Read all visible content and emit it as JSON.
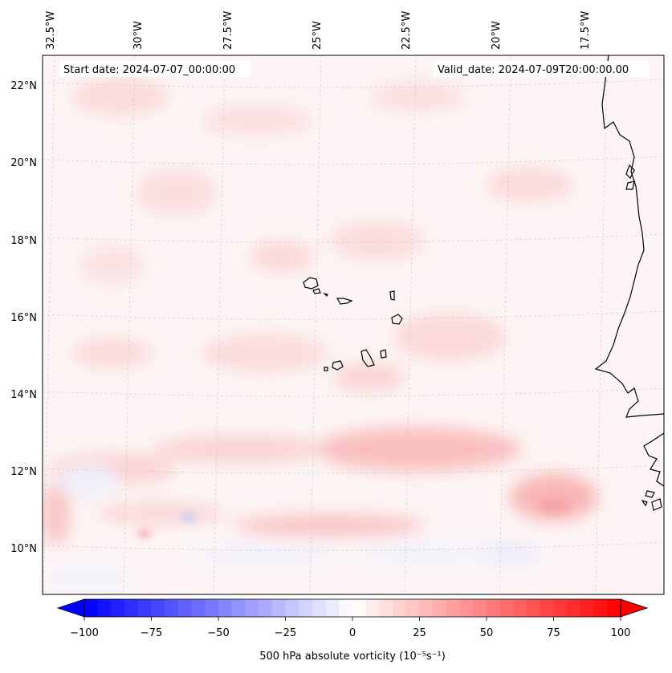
{
  "map": {
    "start_label": "Start date: 2024-07-07_00:00:00",
    "valid_label": "Valid_date: 2024-07-09T20:00:00.00",
    "lon_labels": [
      "32.5°W",
      "30°W",
      "27.5°W",
      "25°W",
      "22.5°W",
      "20°W",
      "17.5°W"
    ],
    "lat_labels": [
      "22°N",
      "20°N",
      "18°N",
      "16°N",
      "14°N",
      "12°N",
      "10°N"
    ],
    "gridlines": true,
    "field_colors": {
      "background": "#fdf5f5",
      "positive": "#ff0000",
      "negative": "#0000ff"
    }
  },
  "colorbar": {
    "label": "500 hPa absolute vorticity (10⁻⁵s⁻¹)",
    "tick_labels": [
      "−100",
      "−75",
      "−50",
      "−25",
      "0",
      "25",
      "50",
      "75",
      "100"
    ],
    "range": [
      -100,
      100
    ],
    "cmap": "bwr"
  }
}
